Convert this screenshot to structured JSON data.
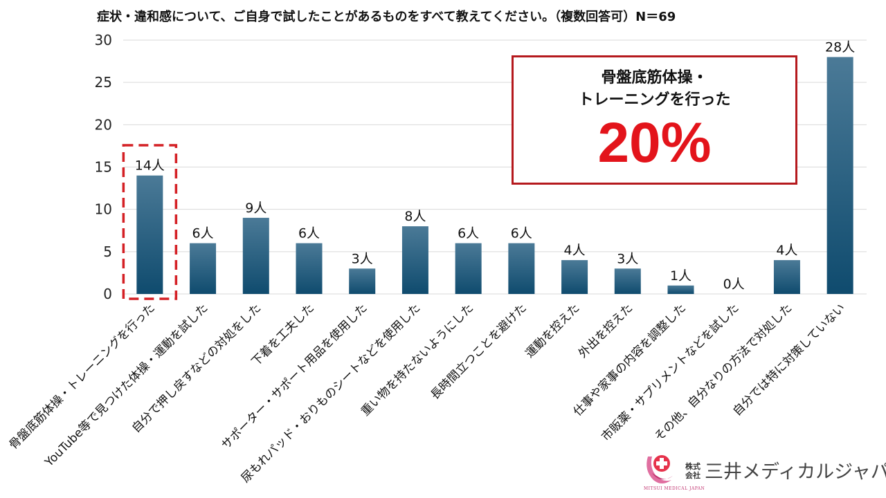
{
  "chart_data": {
    "type": "bar",
    "title": "症状・違和感について、ご自身で試したことがあるものをすべて教えてください。（複数回答可）N＝69",
    "categories": [
      "骨盤底筋体操・トレーニングを行った",
      "YouTube等で見つけた体操・運動を試した",
      "自分で押し戻すなどの対処をした",
      "下着を工夫した",
      "サポーター・サポート用品を使用した",
      "尿もれパッド・おりものシートなどを使用した",
      "重い物を持たないようにした",
      "長時間立つことを避けた",
      "運動を控えた",
      "外出を控えた",
      "仕事や家事の内容を調整した",
      "市販薬・サプリメントなどを試した",
      "その他、自分なりの方法で対処した",
      "自分では特に対策していない"
    ],
    "values": [
      14,
      6,
      9,
      6,
      3,
      8,
      6,
      6,
      4,
      3,
      1,
      0,
      4,
      28
    ],
    "value_labels": [
      "14人",
      "6人",
      "9人",
      "6人",
      "3人",
      "8人",
      "6人",
      "6人",
      "4人",
      "3人",
      "1人",
      "0人",
      "4人",
      "28人"
    ],
    "ylim": [
      0,
      30
    ],
    "yticks": [
      0,
      5,
      10,
      15,
      20,
      25,
      30
    ],
    "xlabel": "",
    "ylabel": "",
    "grid": true,
    "highlighted_category_index": 0,
    "colors": {
      "bar_top": "#4b7a97",
      "bar_bottom": "#0f4b6e",
      "highlight": "#d42025",
      "grid": "#d9d9d9"
    }
  },
  "callout": {
    "line1": "骨盤底筋体操・",
    "line2": "トレーニングを行った",
    "value": "20%",
    "border_color": "#b5191d",
    "value_color": "#e3141b"
  },
  "logo": {
    "kabushiki": "株式会社",
    "name": "三井メディカルジャパン",
    "english": "MITSUI MEDICAL JAPAN",
    "icon": "mitsui-medical-cross-icon"
  }
}
